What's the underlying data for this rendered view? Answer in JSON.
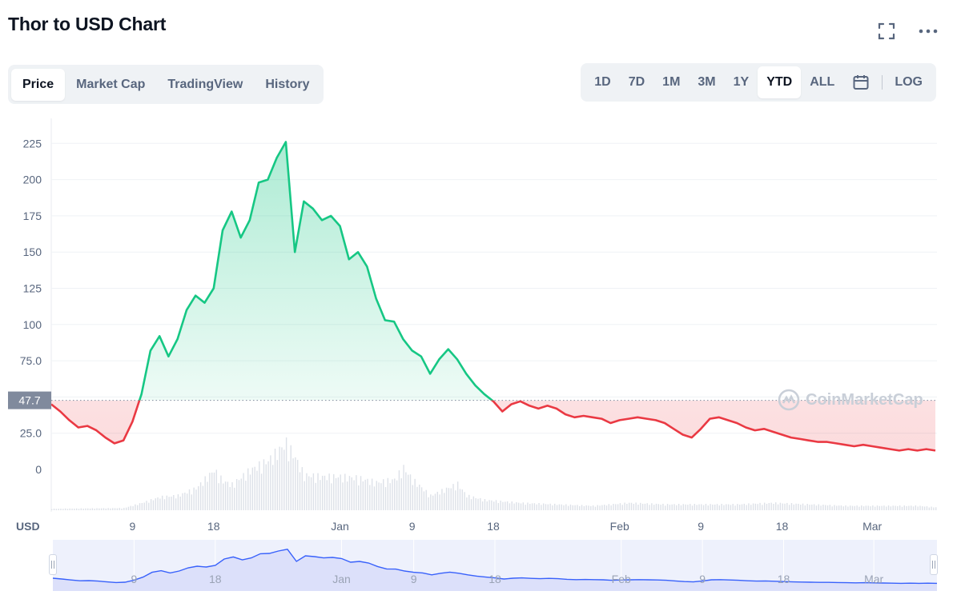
{
  "header": {
    "title": "Thor to USD Chart"
  },
  "tabs": [
    "Price",
    "Market Cap",
    "TradingView",
    "History"
  ],
  "active_tab": "Price",
  "ranges": [
    "1D",
    "7D",
    "1M",
    "3M",
    "1Y",
    "YTD",
    "ALL"
  ],
  "active_range": "YTD",
  "log_label": "LOG",
  "currency_label": "USD",
  "current_price_label": "47.7",
  "watermark": "CoinMarketCap",
  "colors": {
    "up_line": "#16c784",
    "down_line": "#ea3943",
    "navigator_line": "#3861fb",
    "price_tag": "#808a9d"
  },
  "icons": [
    "fullscreen-icon",
    "more-icon",
    "calendar-icon"
  ],
  "chart_data": {
    "type": "area",
    "baseline": 47.7,
    "ylim": [
      0,
      240
    ],
    "yticks": [
      0,
      25.0,
      50.0,
      75.0,
      100,
      125,
      150,
      175,
      200,
      225
    ],
    "ytick_labels": [
      "0",
      "25.0",
      "",
      "75.0",
      "100",
      "125",
      "150",
      "175",
      "200",
      "225"
    ],
    "xtick_labels": [
      "9",
      "18",
      "Jan",
      "9",
      "18",
      "Feb",
      "9",
      "18",
      "Mar"
    ],
    "xtick_days": [
      9,
      18,
      32,
      40,
      49,
      63,
      72,
      81,
      91
    ],
    "xrange_days": [
      0,
      98
    ],
    "series": [
      {
        "x_days": [
          0,
          1,
          2,
          3,
          4,
          5,
          6,
          7,
          8,
          9,
          10,
          11,
          12,
          13,
          14,
          15,
          16,
          17,
          18,
          19,
          20,
          21,
          22,
          23,
          24,
          25,
          26,
          27,
          28,
          29,
          30,
          31,
          32,
          33,
          34,
          35,
          36,
          37,
          38,
          39,
          40,
          41,
          42,
          43,
          44,
          45,
          46,
          47,
          48,
          49,
          50,
          51,
          52,
          53,
          54,
          55,
          56,
          57,
          58,
          59,
          60,
          61,
          62,
          63,
          64,
          65,
          66,
          67,
          68,
          69,
          70,
          71,
          72,
          73,
          74,
          75,
          76,
          77,
          78,
          79,
          80,
          81,
          82,
          83,
          84,
          85,
          86,
          87,
          88,
          89,
          90,
          91,
          92,
          93,
          94,
          95,
          96,
          97,
          98
        ],
        "values": [
          45,
          40,
          34,
          29,
          30,
          27,
          22,
          18,
          20,
          33,
          52,
          82,
          92,
          78,
          90,
          110,
          120,
          115,
          125,
          165,
          178,
          160,
          172,
          198,
          200,
          215,
          226,
          150,
          185,
          180,
          172,
          175,
          168,
          145,
          150,
          140,
          118,
          103,
          102,
          90,
          82,
          78,
          66,
          76,
          83,
          76,
          66,
          58,
          52,
          47,
          40,
          45,
          47,
          44,
          42,
          44,
          42,
          38,
          36,
          37,
          36,
          35,
          32,
          34,
          35,
          36,
          35,
          34,
          32,
          28,
          24,
          22,
          28,
          35,
          36,
          34,
          32,
          29,
          27,
          28,
          26,
          24,
          22,
          21,
          20,
          19,
          19,
          18,
          17,
          16,
          17,
          16,
          15,
          14,
          13,
          14,
          13,
          14,
          13
        ]
      }
    ],
    "volume_series": {
      "x_days": [
        0,
        8,
        10,
        12,
        14,
        16,
        18,
        19,
        20,
        22,
        24,
        25,
        26,
        27,
        28,
        30,
        32,
        34,
        36,
        38,
        39,
        40,
        42,
        45,
        46,
        48,
        52,
        56,
        60,
        64,
        68,
        72,
        76,
        80,
        84,
        88,
        92,
        96,
        98
      ],
      "values": [
        2,
        3,
        10,
        18,
        20,
        30,
        55,
        40,
        35,
        55,
        68,
        80,
        92,
        72,
        48,
        46,
        46,
        44,
        38,
        42,
        58,
        42,
        20,
        36,
        20,
        14,
        10,
        8,
        6,
        10,
        8,
        8,
        8,
        10,
        8,
        6,
        6,
        6,
        4
      ]
    }
  }
}
